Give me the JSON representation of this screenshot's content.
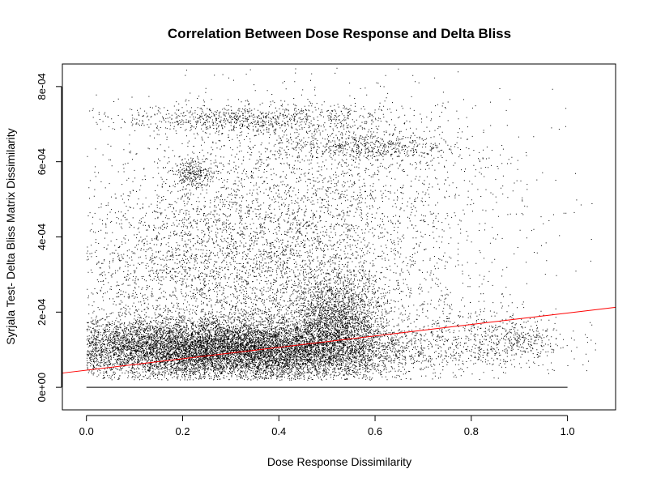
{
  "chart_data": {
    "type": "scatter",
    "title": "Correlation Between Dose Response and Delta Bliss",
    "xlabel": "Dose Response Dissimilarity",
    "ylabel": "Syrjala Test- Delta Bliss Matrix Dissimilarity",
    "xlim": [
      -0.05,
      1.1
    ],
    "ylim": [
      -6e-05,
      0.00086
    ],
    "x_ticks": [
      0.0,
      0.2,
      0.4,
      0.6,
      0.8,
      1.0
    ],
    "x_tick_labels": [
      "0.0",
      "0.2",
      "0.4",
      "0.6",
      "0.8",
      "1.0"
    ],
    "y_ticks": [
      0,
      0.0002,
      0.0004,
      0.0006,
      0.0008
    ],
    "y_tick_labels": [
      "0e+00",
      "2e-04",
      "4e-04",
      "6e-04",
      "8e-04"
    ],
    "grid": false,
    "point_color": "#000000",
    "series": [
      {
        "clusters": [
          {
            "cx": 0.18,
            "cy": 0.000105,
            "sx": 0.15,
            "sy": 4e-05,
            "n": 9000
          },
          {
            "cx": 0.4,
            "cy": 9.5e-05,
            "sx": 0.14,
            "sy": 4e-05,
            "n": 6000
          },
          {
            "cx": 0.52,
            "cy": 0.00018,
            "sx": 0.05,
            "sy": 6e-05,
            "n": 2000
          },
          {
            "cx": 0.3,
            "cy": 0.0003,
            "sx": 0.2,
            "sy": 0.00012,
            "n": 3500
          },
          {
            "cx": 0.45,
            "cy": 0.0005,
            "sx": 0.22,
            "sy": 0.00014,
            "n": 2500
          },
          {
            "cx": 0.35,
            "cy": 0.000715,
            "sx": 0.14,
            "sy": 2e-05,
            "n": 900
          },
          {
            "cx": 0.58,
            "cy": 0.00064,
            "sx": 0.1,
            "sy": 2e-05,
            "n": 600
          },
          {
            "cx": 0.22,
            "cy": 0.00057,
            "sx": 0.02,
            "sy": 2e-05,
            "n": 250
          },
          {
            "cx": 0.8,
            "cy": 0.00013,
            "sx": 0.1,
            "sy": 5e-05,
            "n": 700
          },
          {
            "cx": 0.9,
            "cy": 0.00012,
            "sx": 0.04,
            "sy": 2e-05,
            "n": 150
          }
        ],
        "baseline": {
          "y": 0,
          "x_from": 0.0,
          "x_to": 1.0
        }
      }
    ],
    "regression_line": {
      "intercept": 4.55e-05,
      "slope": 0.000152,
      "color": "#ff0000"
    }
  }
}
